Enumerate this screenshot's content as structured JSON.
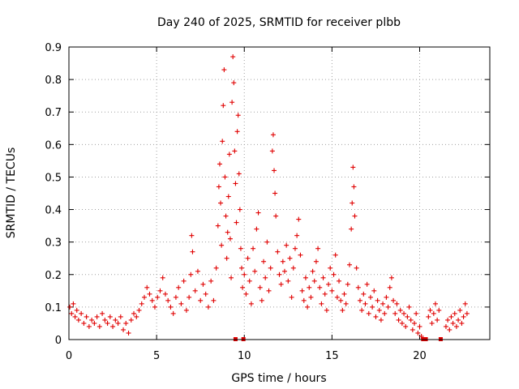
{
  "chart_data": {
    "type": "scatter",
    "title": "Day 240 of 2025, SRMTID for receiver plbb",
    "xlabel": "GPS time / hours",
    "ylabel": "SRMTID / TECUs",
    "xlim": [
      0,
      24
    ],
    "ylim": [
      0,
      0.9
    ],
    "x_ticks": [
      0,
      5,
      10,
      15,
      20
    ],
    "x_tick_labels": [
      "0",
      "5",
      "10",
      "15",
      "20"
    ],
    "y_ticks": [
      0,
      0.1,
      0.2,
      0.3,
      0.4,
      0.5,
      0.6,
      0.7,
      0.8,
      0.9
    ],
    "y_tick_labels": [
      "0",
      "0.1",
      "0.2",
      "0.3",
      "0.4",
      "0.5",
      "0.6",
      "0.7",
      "0.8",
      "0.9"
    ],
    "grid": true,
    "marker": "+",
    "color": "#e00000",
    "zero_markers_x": [
      9.5,
      9.95,
      20.2,
      20.35,
      21.2
    ],
    "series": [
      {
        "name": "SRMTID",
        "points": [
          [
            0.05,
            0.1
          ],
          [
            0.15,
            0.08
          ],
          [
            0.25,
            0.11
          ],
          [
            0.35,
            0.07
          ],
          [
            0.45,
            0.09
          ],
          [
            0.55,
            0.06
          ],
          [
            0.7,
            0.08
          ],
          [
            0.85,
            0.05
          ],
          [
            1.0,
            0.07
          ],
          [
            1.15,
            0.04
          ],
          [
            1.3,
            0.06
          ],
          [
            1.45,
            0.05
          ],
          [
            1.6,
            0.07
          ],
          [
            1.75,
            0.04
          ],
          [
            1.9,
            0.08
          ],
          [
            2.05,
            0.06
          ],
          [
            2.2,
            0.05
          ],
          [
            2.35,
            0.07
          ],
          [
            2.5,
            0.04
          ],
          [
            2.65,
            0.06
          ],
          [
            2.8,
            0.05
          ],
          [
            2.95,
            0.07
          ],
          [
            3.1,
            0.03
          ],
          [
            3.25,
            0.05
          ],
          [
            3.4,
            0.02
          ],
          [
            3.55,
            0.06
          ],
          [
            3.7,
            0.08
          ],
          [
            3.85,
            0.07
          ],
          [
            4.0,
            0.09
          ],
          [
            4.15,
            0.11
          ],
          [
            4.3,
            0.13
          ],
          [
            4.45,
            0.16
          ],
          [
            4.6,
            0.14
          ],
          [
            4.75,
            0.12
          ],
          [
            4.9,
            0.1
          ],
          [
            5.05,
            0.13
          ],
          [
            5.2,
            0.15
          ],
          [
            5.35,
            0.19
          ],
          [
            5.5,
            0.14
          ],
          [
            5.65,
            0.12
          ],
          [
            5.8,
            0.1
          ],
          [
            5.95,
            0.08
          ],
          [
            6.1,
            0.13
          ],
          [
            6.25,
            0.16
          ],
          [
            6.4,
            0.11
          ],
          [
            6.55,
            0.18
          ],
          [
            6.7,
            0.09
          ],
          [
            6.85,
            0.13
          ],
          [
            6.95,
            0.2
          ],
          [
            7.0,
            0.32
          ],
          [
            7.05,
            0.27
          ],
          [
            7.2,
            0.15
          ],
          [
            7.35,
            0.21
          ],
          [
            7.5,
            0.12
          ],
          [
            7.65,
            0.17
          ],
          [
            7.8,
            0.14
          ],
          [
            7.95,
            0.1
          ],
          [
            8.1,
            0.18
          ],
          [
            8.25,
            0.12
          ],
          [
            8.4,
            0.22
          ],
          [
            8.5,
            0.35
          ],
          [
            8.55,
            0.47
          ],
          [
            8.6,
            0.54
          ],
          [
            8.65,
            0.42
          ],
          [
            8.7,
            0.29
          ],
          [
            8.75,
            0.61
          ],
          [
            8.8,
            0.72
          ],
          [
            8.85,
            0.83
          ],
          [
            8.9,
            0.5
          ],
          [
            8.95,
            0.38
          ],
          [
            9.0,
            0.25
          ],
          [
            9.05,
            0.33
          ],
          [
            9.1,
            0.44
          ],
          [
            9.15,
            0.57
          ],
          [
            9.2,
            0.31
          ],
          [
            9.25,
            0.19
          ],
          [
            9.3,
            0.73
          ],
          [
            9.35,
            0.87
          ],
          [
            9.4,
            0.79
          ],
          [
            9.45,
            0.58
          ],
          [
            9.5,
            0.48
          ],
          [
            9.55,
            0.36
          ],
          [
            9.6,
            0.64
          ],
          [
            9.65,
            0.69
          ],
          [
            9.7,
            0.51
          ],
          [
            9.75,
            0.4
          ],
          [
            9.8,
            0.28
          ],
          [
            9.85,
            0.22
          ],
          [
            9.9,
            0.16
          ],
          [
            10.0,
            0.2
          ],
          [
            10.1,
            0.14
          ],
          [
            10.2,
            0.25
          ],
          [
            10.3,
            0.18
          ],
          [
            10.4,
            0.11
          ],
          [
            10.5,
            0.28
          ],
          [
            10.6,
            0.21
          ],
          [
            10.7,
            0.34
          ],
          [
            10.8,
            0.39
          ],
          [
            10.9,
            0.16
          ],
          [
            11.0,
            0.12
          ],
          [
            11.1,
            0.24
          ],
          [
            11.2,
            0.19
          ],
          [
            11.3,
            0.3
          ],
          [
            11.4,
            0.15
          ],
          [
            11.5,
            0.22
          ],
          [
            11.6,
            0.58
          ],
          [
            11.65,
            0.63
          ],
          [
            11.7,
            0.52
          ],
          [
            11.75,
            0.45
          ],
          [
            11.8,
            0.38
          ],
          [
            11.9,
            0.27
          ],
          [
            12.0,
            0.2
          ],
          [
            12.1,
            0.17
          ],
          [
            12.2,
            0.24
          ],
          [
            12.3,
            0.21
          ],
          [
            12.4,
            0.29
          ],
          [
            12.5,
            0.18
          ],
          [
            12.6,
            0.25
          ],
          [
            12.7,
            0.13
          ],
          [
            12.8,
            0.22
          ],
          [
            12.9,
            0.28
          ],
          [
            13.0,
            0.32
          ],
          [
            13.1,
            0.37
          ],
          [
            13.2,
            0.26
          ],
          [
            13.3,
            0.15
          ],
          [
            13.4,
            0.12
          ],
          [
            13.5,
            0.19
          ],
          [
            13.6,
            0.1
          ],
          [
            13.7,
            0.16
          ],
          [
            13.8,
            0.13
          ],
          [
            13.9,
            0.21
          ],
          [
            14.0,
            0.18
          ],
          [
            14.1,
            0.24
          ],
          [
            14.2,
            0.28
          ],
          [
            14.3,
            0.16
          ],
          [
            14.4,
            0.11
          ],
          [
            14.5,
            0.19
          ],
          [
            14.6,
            0.14
          ],
          [
            14.7,
            0.09
          ],
          [
            14.8,
            0.17
          ],
          [
            14.9,
            0.22
          ],
          [
            15.0,
            0.15
          ],
          [
            15.1,
            0.2
          ],
          [
            15.2,
            0.26
          ],
          [
            15.3,
            0.13
          ],
          [
            15.4,
            0.18
          ],
          [
            15.5,
            0.12
          ],
          [
            15.6,
            0.09
          ],
          [
            15.7,
            0.14
          ],
          [
            15.8,
            0.11
          ],
          [
            15.9,
            0.17
          ],
          [
            16.0,
            0.23
          ],
          [
            16.1,
            0.34
          ],
          [
            16.15,
            0.42
          ],
          [
            16.2,
            0.53
          ],
          [
            16.25,
            0.47
          ],
          [
            16.3,
            0.38
          ],
          [
            16.4,
            0.22
          ],
          [
            16.5,
            0.16
          ],
          [
            16.6,
            0.12
          ],
          [
            16.7,
            0.09
          ],
          [
            16.8,
            0.14
          ],
          [
            16.9,
            0.11
          ],
          [
            17.0,
            0.17
          ],
          [
            17.1,
            0.08
          ],
          [
            17.2,
            0.13
          ],
          [
            17.3,
            0.1
          ],
          [
            17.4,
            0.15
          ],
          [
            17.5,
            0.07
          ],
          [
            17.6,
            0.12
          ],
          [
            17.7,
            0.09
          ],
          [
            17.8,
            0.06
          ],
          [
            17.9,
            0.11
          ],
          [
            18.0,
            0.08
          ],
          [
            18.1,
            0.13
          ],
          [
            18.2,
            0.1
          ],
          [
            18.3,
            0.16
          ],
          [
            18.4,
            0.19
          ],
          [
            18.5,
            0.12
          ],
          [
            18.6,
            0.08
          ],
          [
            18.7,
            0.11
          ],
          [
            18.8,
            0.06
          ],
          [
            18.9,
            0.09
          ],
          [
            19.0,
            0.05
          ],
          [
            19.1,
            0.08
          ],
          [
            19.2,
            0.04
          ],
          [
            19.3,
            0.07
          ],
          [
            19.4,
            0.1
          ],
          [
            19.5,
            0.06
          ],
          [
            19.6,
            0.03
          ],
          [
            19.7,
            0.05
          ],
          [
            19.8,
            0.08
          ],
          [
            19.9,
            0.02
          ],
          [
            20.0,
            0.04
          ],
          [
            20.1,
            0.01
          ],
          [
            20.5,
            0.07
          ],
          [
            20.6,
            0.09
          ],
          [
            20.7,
            0.05
          ],
          [
            20.8,
            0.08
          ],
          [
            20.9,
            0.11
          ],
          [
            21.0,
            0.06
          ],
          [
            21.1,
            0.09
          ],
          [
            21.5,
            0.04
          ],
          [
            21.6,
            0.06
          ],
          [
            21.7,
            0.03
          ],
          [
            21.8,
            0.07
          ],
          [
            21.9,
            0.05
          ],
          [
            22.0,
            0.08
          ],
          [
            22.1,
            0.04
          ],
          [
            22.2,
            0.06
          ],
          [
            22.3,
            0.09
          ],
          [
            22.4,
            0.05
          ],
          [
            22.5,
            0.07
          ],
          [
            22.6,
            0.11
          ],
          [
            22.7,
            0.08
          ]
        ]
      }
    ]
  }
}
